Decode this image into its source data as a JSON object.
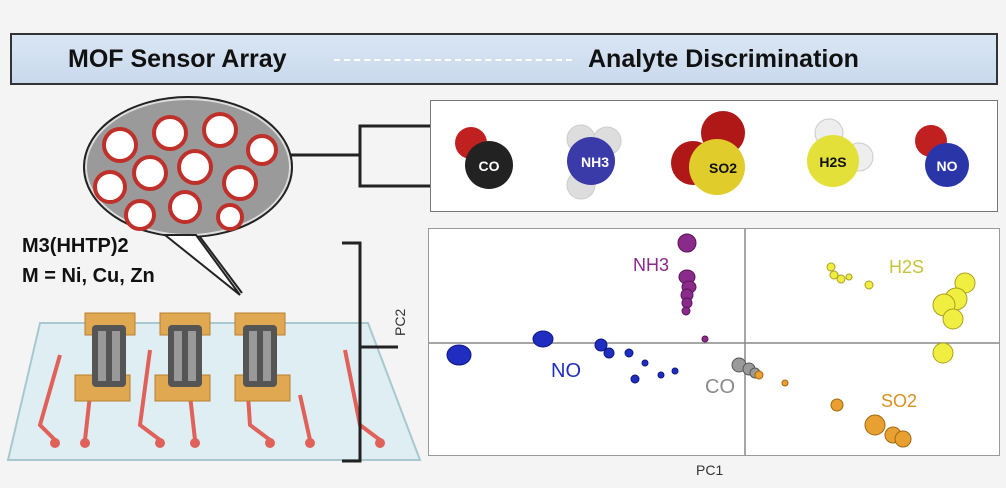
{
  "banner": {
    "left_title": "MOF Sensor Array",
    "right_title": "Analyte Discrimination"
  },
  "material": {
    "formula_line1": "M3(HHTP)2",
    "formula_line2": "M = Ni, Cu, Zn"
  },
  "molecules": [
    {
      "label": "CO",
      "color": "#2a2a2a"
    },
    {
      "label": "NH3",
      "color": "#3a3aa8"
    },
    {
      "label": "SO2",
      "color": "#e0cc2a"
    },
    {
      "label": "H2S",
      "color": "#e3e03a"
    },
    {
      "label": "NO",
      "color": "#2a36a8"
    }
  ],
  "pca": {
    "xlabel": "PC1",
    "ylabel": "PC2",
    "groups": [
      {
        "name": "NH3",
        "color": "#8a2a8a"
      },
      {
        "name": "H2S",
        "color": "#e8e43a"
      },
      {
        "name": "NO",
        "color": "#1f2ec0"
      },
      {
        "name": "CO",
        "color": "#9a9a9a"
      },
      {
        "name": "SO2",
        "color": "#e8a030"
      }
    ]
  }
}
